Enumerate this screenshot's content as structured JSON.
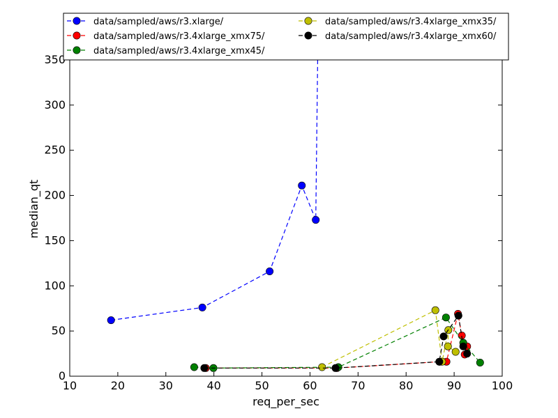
{
  "chart_data": {
    "type": "line",
    "title": "",
    "xlabel": "req_per_sec",
    "ylabel": "median_qt",
    "xlim": [
      10,
      100
    ],
    "ylim": [
      0,
      370
    ],
    "xticks": [
      10,
      20,
      30,
      40,
      50,
      60,
      70,
      80,
      90,
      100
    ],
    "yticks": [
      0,
      50,
      100,
      150,
      200,
      250,
      300,
      350
    ],
    "grid": false,
    "legend_position": "top",
    "series": [
      {
        "name": "data/sampled/aws/r3.xlarge/",
        "color": "#0000ff",
        "x": [
          18.6,
          37.6,
          51.6,
          58.3,
          61.2,
          61.7
        ],
        "y": [
          62,
          76,
          116,
          211,
          173,
          400
        ]
      },
      {
        "name": "data/sampled/aws/r3.4xlarge_xmx75/",
        "color": "#ff0000",
        "x": [
          38.3,
          65.6,
          87.0,
          88.4,
          90.8,
          91.6,
          92.2,
          92.7
        ],
        "y": [
          9,
          9,
          16,
          16,
          69,
          45,
          24,
          33
        ]
      },
      {
        "name": "data/sampled/aws/r3.4xlarge_xmx45/",
        "color": "#008000",
        "x": [
          35.9,
          39.9,
          65.9,
          88.3,
          91.9,
          95.4
        ],
        "y": [
          10,
          9,
          10,
          65,
          37,
          15
        ]
      },
      {
        "name": "data/sampled/aws/r3.4xlarge_xmx35/",
        "color": "#bfbf00",
        "x": [
          62.5,
          86.1,
          87.5,
          88.8,
          88.7,
          90.3
        ],
        "y": [
          10,
          73,
          16,
          51,
          33,
          27
        ]
      },
      {
        "name": "data/sampled/aws/r3.4xlarge_xmx60/",
        "color": "#000000",
        "x": [
          38.0,
          65.3,
          86.9,
          87.8,
          90.9,
          91.9,
          92.7
        ],
        "y": [
          9,
          9,
          16,
          44,
          67,
          33,
          25
        ]
      }
    ]
  }
}
